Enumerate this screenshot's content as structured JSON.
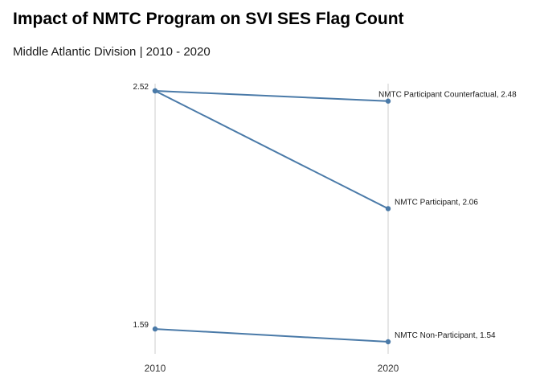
{
  "chart_data": {
    "type": "line",
    "title": "Impact of NMTC Program on SVI SES Flag Count",
    "subtitle": "Middle Atlantic Division | 2010 - 2020",
    "xlabel": "",
    "ylabel": "",
    "x": [
      "2010",
      "2020"
    ],
    "series": [
      {
        "name": "NMTC Participant Counterfactual",
        "values": [
          2.52,
          2.48
        ],
        "label": "NMTC Participant Counterfactual, 2.48"
      },
      {
        "name": "NMTC Participant",
        "values": [
          2.52,
          2.06
        ],
        "label": "NMTC Participant, 2.06"
      },
      {
        "name": "NMTC Non-Participant",
        "values": [
          1.59,
          1.54
        ],
        "label": "NMTC Non-Participant, 1.54"
      }
    ],
    "start_labels": [
      "2.52",
      "1.59"
    ],
    "ylim": [
      1.54,
      2.52
    ],
    "line_color": "#4a7aa8",
    "grid": "vertical",
    "legend": "none"
  }
}
